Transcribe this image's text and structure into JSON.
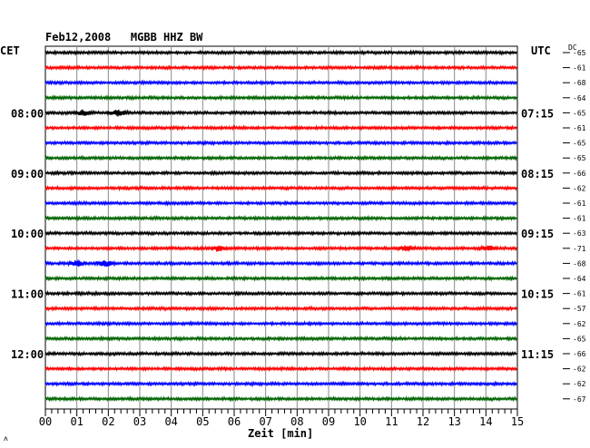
{
  "chart_data": {
    "type": "line",
    "title": "Feb12,2008   MGBB HHZ BW",
    "left_zone": "CET",
    "right_zone": "UTC",
    "dc_label": "DC",
    "xlabel": "Zeit [min]",
    "x_range": [
      0,
      15
    ],
    "x_ticks": [
      "00",
      "01",
      "02",
      "03",
      "04",
      "05",
      "06",
      "07",
      "08",
      "09",
      "10",
      "11",
      "12",
      "13",
      "14",
      "15"
    ],
    "rows_per_hour": 4,
    "trace_colors": [
      "#000000",
      "#ff0000",
      "#0000ff",
      "#006400"
    ],
    "left_hour_labels": [
      {
        "row": 4,
        "text": "08:00"
      },
      {
        "row": 8,
        "text": "09:00"
      },
      {
        "row": 12,
        "text": "10:00"
      },
      {
        "row": 16,
        "text": "11:00"
      },
      {
        "row": 20,
        "text": "12:00"
      }
    ],
    "right_hour_labels": [
      {
        "row": 4,
        "text": "07:15"
      },
      {
        "row": 8,
        "text": "08:15"
      },
      {
        "row": 12,
        "text": "09:15"
      },
      {
        "row": 16,
        "text": "10:15"
      },
      {
        "row": 20,
        "text": "11:15"
      }
    ],
    "dc_offsets": [
      "-65",
      "-61",
      "-68",
      "-64",
      "-65",
      "-61",
      "-65",
      "-65",
      "-66",
      "-62",
      "-61",
      "-61",
      "-63",
      "-71",
      "-68",
      "-64",
      "-61",
      "-57",
      "-62",
      "-65",
      "-66",
      "-62",
      "-62",
      "-67"
    ],
    "events": [
      {
        "row": 4,
        "minute": 1.2,
        "amp": 2.5
      },
      {
        "row": 4,
        "minute": 2.3,
        "amp": 3
      },
      {
        "row": 13,
        "minute": 5.5,
        "amp": 3
      },
      {
        "row": 13,
        "minute": 11.5,
        "amp": 2.5
      },
      {
        "row": 13,
        "minute": 14.1,
        "amp": 2.5
      },
      {
        "row": 14,
        "minute": 1.0,
        "amp": 3
      },
      {
        "row": 14,
        "minute": 1.9,
        "amp": 3
      }
    ],
    "grid": true
  },
  "corner_mark": "ʌ"
}
